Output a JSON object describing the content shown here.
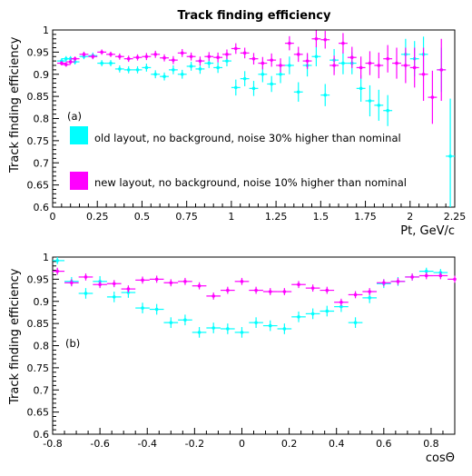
{
  "colors": {
    "old": "#00ffff",
    "new": "#ff00ff",
    "axis": "#000000"
  },
  "chart_data": [
    {
      "type": "scatter",
      "title": "Track finding efficiency",
      "xlabel": "Pt, GeV/c",
      "ylabel": "Track finding efficiency",
      "panel_label": "(a)",
      "xlim": [
        0,
        2.25
      ],
      "ylim": [
        0.6,
        1.0
      ],
      "xticks": [
        "0",
        "0.25",
        "0.5",
        "0.75",
        "1",
        "1.25",
        "1.5",
        "1.75",
        "2",
        "2.25"
      ],
      "xtick_values": [
        0,
        0.25,
        0.5,
        0.75,
        1,
        1.25,
        1.5,
        1.75,
        2,
        2.25
      ],
      "yticks": [
        "0.6",
        "0.65",
        "0.7",
        "0.75",
        "0.8",
        "0.85",
        "0.9",
        "0.95",
        "1"
      ],
      "ytick_values": [
        0.6,
        0.65,
        0.7,
        0.75,
        0.8,
        0.85,
        0.9,
        0.95,
        1.0
      ],
      "legend": [
        {
          "key": "old",
          "label": "old layout, no background, noise 30% higher than nominal"
        },
        {
          "key": "new",
          "label": "new layout, no background, noise 10% higher than nominal"
        }
      ],
      "series": [
        {
          "key": "old",
          "x_err": 0.025,
          "points": [
            [
              0.05,
              0.93,
              0.006
            ],
            [
              0.075,
              0.935,
              0.006
            ],
            [
              0.1,
              0.935,
              0.006
            ],
            [
              0.125,
              0.928,
              0.006
            ],
            [
              0.175,
              0.94,
              0.006
            ],
            [
              0.225,
              0.942,
              0.007
            ],
            [
              0.275,
              0.925,
              0.007
            ],
            [
              0.325,
              0.925,
              0.007
            ],
            [
              0.375,
              0.912,
              0.008
            ],
            [
              0.425,
              0.91,
              0.008
            ],
            [
              0.475,
              0.91,
              0.008
            ],
            [
              0.525,
              0.915,
              0.009
            ],
            [
              0.575,
              0.9,
              0.009
            ],
            [
              0.625,
              0.895,
              0.009
            ],
            [
              0.675,
              0.91,
              0.01
            ],
            [
              0.725,
              0.9,
              0.01
            ],
            [
              0.775,
              0.918,
              0.01
            ],
            [
              0.825,
              0.912,
              0.011
            ],
            [
              0.875,
              0.925,
              0.011
            ],
            [
              0.925,
              0.915,
              0.012
            ],
            [
              0.975,
              0.93,
              0.012
            ],
            [
              1.025,
              0.87,
              0.018
            ],
            [
              1.075,
              0.89,
              0.017
            ],
            [
              1.125,
              0.868,
              0.017
            ],
            [
              1.175,
              0.9,
              0.018
            ],
            [
              1.225,
              0.878,
              0.018
            ],
            [
              1.275,
              0.9,
              0.02
            ],
            [
              1.325,
              0.92,
              0.02
            ],
            [
              1.375,
              0.86,
              0.022
            ],
            [
              1.425,
              0.92,
              0.025
            ],
            [
              1.475,
              0.94,
              0.022
            ],
            [
              1.525,
              0.853,
              0.025
            ],
            [
              1.575,
              0.932,
              0.025
            ],
            [
              1.625,
              0.925,
              0.025
            ],
            [
              1.675,
              0.925,
              0.025
            ],
            [
              1.725,
              0.868,
              0.03
            ],
            [
              1.775,
              0.84,
              0.035
            ],
            [
              1.825,
              0.83,
              0.035
            ],
            [
              1.875,
              0.818,
              0.035
            ],
            [
              1.975,
              0.945,
              0.035
            ],
            [
              2.025,
              0.935,
              0.04
            ],
            [
              2.075,
              0.945,
              0.04
            ],
            [
              2.175,
              0.91,
              0.05
            ],
            [
              2.225,
              0.715,
              0.13
            ]
          ]
        },
        {
          "key": "new",
          "x_err": 0.025,
          "points": [
            [
              0.05,
              0.925,
              0.005
            ],
            [
              0.075,
              0.922,
              0.005
            ],
            [
              0.1,
              0.928,
              0.005
            ],
            [
              0.125,
              0.935,
              0.005
            ],
            [
              0.175,
              0.945,
              0.006
            ],
            [
              0.225,
              0.94,
              0.006
            ],
            [
              0.275,
              0.95,
              0.006
            ],
            [
              0.325,
              0.945,
              0.006
            ],
            [
              0.375,
              0.94,
              0.007
            ],
            [
              0.425,
              0.935,
              0.007
            ],
            [
              0.475,
              0.938,
              0.007
            ],
            [
              0.525,
              0.94,
              0.008
            ],
            [
              0.575,
              0.945,
              0.008
            ],
            [
              0.625,
              0.937,
              0.008
            ],
            [
              0.675,
              0.932,
              0.009
            ],
            [
              0.725,
              0.948,
              0.009
            ],
            [
              0.775,
              0.94,
              0.009
            ],
            [
              0.825,
              0.93,
              0.01
            ],
            [
              0.875,
              0.94,
              0.01
            ],
            [
              0.925,
              0.938,
              0.011
            ],
            [
              0.975,
              0.945,
              0.011
            ],
            [
              1.025,
              0.958,
              0.012
            ],
            [
              1.075,
              0.948,
              0.012
            ],
            [
              1.125,
              0.935,
              0.013
            ],
            [
              1.175,
              0.925,
              0.014
            ],
            [
              1.225,
              0.932,
              0.015
            ],
            [
              1.275,
              0.92,
              0.016
            ],
            [
              1.325,
              0.97,
              0.016
            ],
            [
              1.375,
              0.945,
              0.017
            ],
            [
              1.425,
              0.93,
              0.018
            ],
            [
              1.475,
              0.98,
              0.019
            ],
            [
              1.525,
              0.978,
              0.02
            ],
            [
              1.575,
              0.92,
              0.022
            ],
            [
              1.625,
              0.97,
              0.023
            ],
            [
              1.675,
              0.938,
              0.024
            ],
            [
              1.725,
              0.915,
              0.025
            ],
            [
              1.775,
              0.925,
              0.027
            ],
            [
              1.825,
              0.92,
              0.029
            ],
            [
              1.875,
              0.935,
              0.031
            ],
            [
              1.925,
              0.925,
              0.035
            ],
            [
              1.975,
              0.92,
              0.04
            ],
            [
              2.025,
              0.915,
              0.045
            ],
            [
              2.075,
              0.9,
              0.06
            ],
            [
              2.125,
              0.848,
              0.06
            ],
            [
              2.175,
              0.91,
              0.07
            ]
          ]
        }
      ]
    },
    {
      "type": "scatter",
      "xlabel": "cosΘ",
      "ylabel": "Track finding efficiency",
      "panel_label": "(b)",
      "xlim": [
        -0.8,
        0.9
      ],
      "ylim": [
        0.6,
        1.0
      ],
      "xticks": [
        "-0.8",
        "-0.6",
        "-0.4",
        "-0.2",
        "0",
        "0.2",
        "0.4",
        "0.6",
        "0.8"
      ],
      "xtick_values": [
        -0.8,
        -0.6,
        -0.4,
        -0.2,
        0,
        0.2,
        0.4,
        0.6,
        0.8
      ],
      "yticks": [
        "0.6",
        "0.65",
        "0.7",
        "0.75",
        "0.8",
        "0.85",
        "0.9",
        "0.95",
        "1"
      ],
      "ytick_values": [
        0.6,
        0.65,
        0.7,
        0.75,
        0.8,
        0.85,
        0.9,
        0.95,
        1.0
      ],
      "series": [
        {
          "key": "old",
          "x_err": 0.03,
          "points": [
            [
              -0.78,
              0.992,
              0.008
            ],
            [
              -0.72,
              0.945,
              0.01
            ],
            [
              -0.66,
              0.918,
              0.012
            ],
            [
              -0.6,
              0.945,
              0.012
            ],
            [
              -0.54,
              0.91,
              0.012
            ],
            [
              -0.48,
              0.92,
              0.012
            ],
            [
              -0.42,
              0.885,
              0.012
            ],
            [
              -0.36,
              0.882,
              0.012
            ],
            [
              -0.3,
              0.852,
              0.012
            ],
            [
              -0.24,
              0.858,
              0.012
            ],
            [
              -0.18,
              0.83,
              0.012
            ],
            [
              -0.12,
              0.84,
              0.012
            ],
            [
              -0.06,
              0.838,
              0.012
            ],
            [
              0.0,
              0.83,
              0.012
            ],
            [
              0.06,
              0.852,
              0.012
            ],
            [
              0.12,
              0.845,
              0.012
            ],
            [
              0.18,
              0.838,
              0.012
            ],
            [
              0.24,
              0.865,
              0.012
            ],
            [
              0.3,
              0.872,
              0.012
            ],
            [
              0.36,
              0.878,
              0.012
            ],
            [
              0.42,
              0.888,
              0.012
            ],
            [
              0.48,
              0.852,
              0.012
            ],
            [
              0.54,
              0.908,
              0.012
            ],
            [
              0.6,
              0.94,
              0.01
            ],
            [
              0.66,
              0.945,
              0.01
            ],
            [
              0.72,
              0.955,
              0.008
            ],
            [
              0.78,
              0.968,
              0.008
            ],
            [
              0.84,
              0.965,
              0.008
            ]
          ]
        },
        {
          "key": "new",
          "x_err": 0.03,
          "points": [
            [
              -0.78,
              0.968,
              0.008
            ],
            [
              -0.72,
              0.942,
              0.008
            ],
            [
              -0.66,
              0.955,
              0.008
            ],
            [
              -0.6,
              0.938,
              0.008
            ],
            [
              -0.54,
              0.94,
              0.008
            ],
            [
              -0.48,
              0.928,
              0.008
            ],
            [
              -0.42,
              0.948,
              0.008
            ],
            [
              -0.36,
              0.95,
              0.008
            ],
            [
              -0.3,
              0.942,
              0.008
            ],
            [
              -0.24,
              0.945,
              0.008
            ],
            [
              -0.18,
              0.935,
              0.008
            ],
            [
              -0.12,
              0.912,
              0.008
            ],
            [
              -0.06,
              0.925,
              0.008
            ],
            [
              0.0,
              0.945,
              0.008
            ],
            [
              0.06,
              0.925,
              0.008
            ],
            [
              0.12,
              0.922,
              0.008
            ],
            [
              0.18,
              0.922,
              0.008
            ],
            [
              0.24,
              0.938,
              0.008
            ],
            [
              0.3,
              0.93,
              0.008
            ],
            [
              0.36,
              0.925,
              0.008
            ],
            [
              0.42,
              0.898,
              0.008
            ],
            [
              0.48,
              0.915,
              0.008
            ],
            [
              0.54,
              0.922,
              0.008
            ],
            [
              0.6,
              0.942,
              0.008
            ],
            [
              0.66,
              0.945,
              0.008
            ],
            [
              0.72,
              0.955,
              0.008
            ],
            [
              0.78,
              0.958,
              0.008
            ],
            [
              0.84,
              0.958,
              0.008
            ],
            [
              0.9,
              0.95,
              0.008
            ]
          ]
        }
      ]
    }
  ]
}
